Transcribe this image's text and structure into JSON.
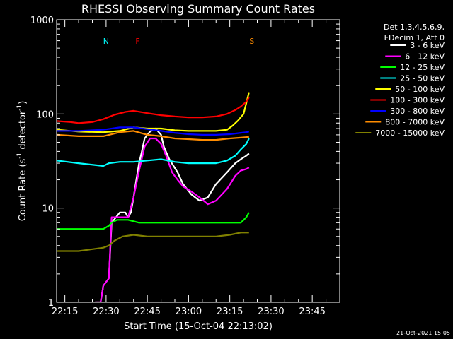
{
  "chart_data": {
    "type": "line",
    "title": "RHESSI Observing Summary Count Rates",
    "xlabel": "Start Time (15-Oct-04 22:13:02)",
    "ylabel_parts": [
      "Count Rate (s",
      "-1",
      " detector",
      "-1",
      ")"
    ],
    "yscale": "log",
    "ylim": [
      1,
      1000
    ],
    "xlim_minutes": [
      12,
      115
    ],
    "x_ticks": [
      {
        "label": "22:15",
        "value": 15
      },
      {
        "label": "22:30",
        "value": 30
      },
      {
        "label": "22:45",
        "value": 45
      },
      {
        "label": "23:00",
        "value": 60
      },
      {
        "label": "23:15",
        "value": 75
      },
      {
        "label": "23:30",
        "value": 90
      },
      {
        "label": "23:45",
        "value": 105
      }
    ],
    "y_ticks": [
      {
        "label": "1",
        "value": 1
      },
      {
        "label": "10",
        "value": 10
      },
      {
        "label": "100",
        "value": 100
      },
      {
        "label": "1000",
        "value": 1000
      }
    ],
    "legend_header": [
      "Det 1,3,4,5,6,9,",
      "FDecim 1, Att 0"
    ],
    "legend_position": "right",
    "series": [
      {
        "name": "3 - 6 keV",
        "color": "#ffffff",
        "x": [
          26,
          28,
          29,
          31,
          32,
          35,
          37,
          38,
          39,
          40,
          41,
          42,
          43,
          44,
          46,
          48,
          50,
          51,
          53,
          56,
          58,
          61,
          64,
          67,
          70,
          74,
          77,
          79,
          81,
          82
        ],
        "y": [
          1,
          1,
          1.5,
          1.8,
          7,
          9,
          9,
          8,
          9,
          13,
          20,
          30,
          40,
          55,
          65,
          70,
          60,
          45,
          33,
          24,
          18,
          14,
          12,
          13,
          18,
          24,
          30,
          33,
          36,
          38
        ]
      },
      {
        "name": "6 - 12 keV",
        "color": "#ff00ff",
        "x": [
          26,
          28,
          29,
          31,
          32,
          35,
          38,
          40,
          42,
          44,
          46,
          48,
          50,
          52,
          54,
          56,
          58,
          61,
          64,
          67,
          70,
          74,
          77,
          79,
          81,
          82
        ],
        "y": [
          1,
          1,
          1.5,
          1.8,
          8,
          8,
          8,
          13,
          25,
          45,
          55,
          55,
          48,
          35,
          24,
          20,
          17,
          15,
          13,
          11,
          12,
          16,
          22,
          25,
          26,
          27
        ]
      },
      {
        "name": "12 - 25 keV",
        "color": "#00ff00",
        "x": [
          12,
          20,
          29,
          31,
          32,
          34,
          38,
          42,
          46,
          50,
          55,
          60,
          65,
          70,
          75,
          79,
          81,
          82
        ],
        "y": [
          6,
          6,
          6,
          6.5,
          7,
          7.5,
          7.5,
          7,
          7,
          7,
          7,
          7,
          7,
          7,
          7,
          7,
          8,
          9
        ]
      },
      {
        "name": "25 - 50 keV",
        "color": "#00ffff",
        "x": [
          12,
          20,
          29,
          31,
          35,
          40,
          45,
          50,
          55,
          60,
          65,
          70,
          74,
          77,
          79,
          81,
          82
        ],
        "y": [
          32,
          30,
          28,
          30,
          31,
          31,
          32,
          33,
          31,
          30,
          30,
          30,
          32,
          36,
          42,
          48,
          55
        ]
      },
      {
        "name": "50 - 100 keV",
        "color": "#ffff00",
        "x": [
          12,
          20,
          29,
          35,
          40,
          45,
          50,
          55,
          60,
          65,
          70,
          74,
          76,
          78,
          80,
          81,
          82
        ],
        "y": [
          68,
          65,
          64,
          66,
          72,
          70,
          70,
          67,
          66,
          66,
          66,
          68,
          75,
          85,
          100,
          130,
          170
        ]
      },
      {
        "name": "100 - 300 keV",
        "color": "#ff0000",
        "x": [
          12,
          17,
          20,
          25,
          29,
          33,
          37,
          40,
          45,
          50,
          55,
          60,
          65,
          70,
          74,
          77,
          79,
          81,
          82
        ],
        "y": [
          84,
          82,
          80,
          82,
          88,
          98,
          105,
          108,
          102,
          97,
          94,
          92,
          92,
          94,
          100,
          110,
          120,
          135,
          150
        ]
      },
      {
        "name": "300 - 800 keV",
        "color": "#0000ff",
        "x": [
          12,
          20,
          29,
          35,
          40,
          45,
          50,
          55,
          60,
          65,
          70,
          75,
          79,
          81,
          82
        ],
        "y": [
          66,
          66,
          68,
          72,
          72,
          69,
          66,
          63,
          61,
          60,
          60,
          61,
          63,
          64,
          65
        ]
      },
      {
        "name": "800 - 7000 keV",
        "color": "#ff8c00",
        "x": [
          12,
          20,
          29,
          35,
          40,
          45,
          50,
          55,
          60,
          65,
          70,
          75,
          79,
          82
        ],
        "y": [
          60,
          58,
          58,
          64,
          66,
          60,
          58,
          55,
          54,
          53,
          53,
          55,
          56,
          57
        ]
      },
      {
        "name": "7000 - 15000 keV",
        "color": "#808000",
        "x": [
          12,
          20,
          29,
          31,
          33,
          36,
          40,
          45,
          50,
          55,
          60,
          65,
          70,
          75,
          79,
          82
        ],
        "y": [
          3.5,
          3.5,
          3.8,
          4,
          4.5,
          5,
          5.2,
          5,
          5,
          5,
          5,
          5,
          5,
          5.2,
          5.5,
          5.5
        ]
      }
    ],
    "annotations": [
      {
        "label": "N",
        "color": "#00ffff",
        "x": 30
      },
      {
        "label": "F",
        "color": "#ff0000",
        "x": 41.5
      },
      {
        "label": "S",
        "color": "#ff8c00",
        "x": 83
      }
    ],
    "footer_date": "21-Oct-2021 15:05"
  }
}
